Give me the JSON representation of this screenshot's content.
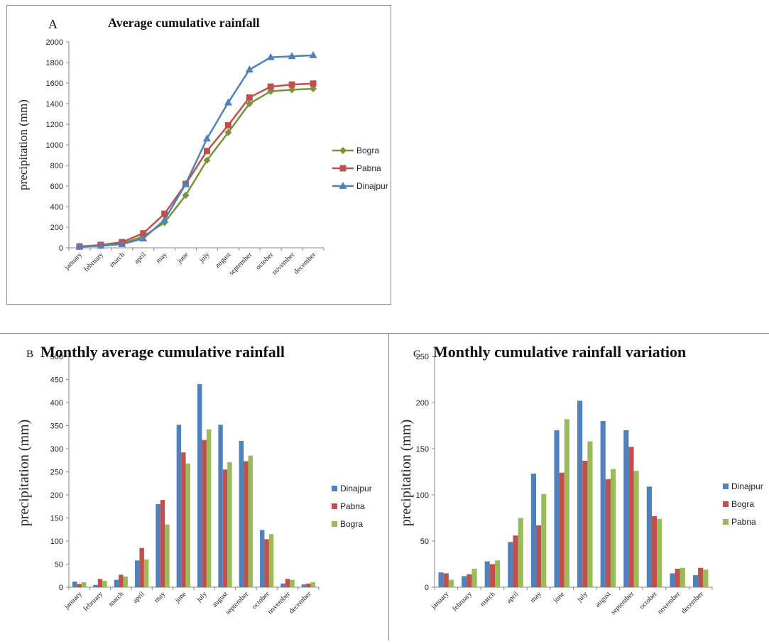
{
  "chart_data": [
    {
      "id": "A",
      "type": "line",
      "panel_letter": "A",
      "title": "Average cumulative rainfall",
      "ylabel": "precipitation (mm)",
      "xlabel": "",
      "ylim": [
        0,
        2000
      ],
      "yticks": [
        0,
        200,
        400,
        600,
        800,
        1000,
        1200,
        1400,
        1600,
        1800,
        2000
      ],
      "categories": [
        "january",
        "february",
        "march",
        "april",
        "may",
        "june",
        "july",
        "august",
        "september",
        "october",
        "november",
        "december"
      ],
      "grid": false,
      "legend_position": "right",
      "series": [
        {
          "name": "Bogra",
          "color": "#77933c",
          "marker": "diamond",
          "values": [
            10,
            20,
            40,
            110,
            245,
            510,
            850,
            1120,
            1400,
            1520,
            1535,
            1545
          ]
        },
        {
          "name": "Pabna",
          "color": "#c0504d",
          "marker": "square",
          "values": [
            12,
            28,
            55,
            140,
            330,
            620,
            940,
            1190,
            1460,
            1565,
            1585,
            1595
          ]
        },
        {
          "name": "Dinajpur",
          "color": "#4f81bd",
          "marker": "triangle",
          "values": [
            12,
            20,
            35,
            90,
            270,
            620,
            1060,
            1410,
            1730,
            1850,
            1860,
            1870
          ]
        }
      ]
    },
    {
      "id": "B",
      "type": "bar",
      "panel_letter": "B",
      "title": "Monthly average cumulative rainfall",
      "ylabel": "precipitation (mm)",
      "xlabel": "",
      "ylim": [
        0,
        500
      ],
      "yticks": [
        0,
        50,
        100,
        150,
        200,
        250,
        300,
        350,
        400,
        450,
        500
      ],
      "categories": [
        "january",
        "february",
        "march",
        "april",
        "may",
        "june",
        "july",
        "august",
        "september",
        "october",
        "november",
        "december"
      ],
      "grid": false,
      "legend_position": "right",
      "series": [
        {
          "name": "Dinajpur",
          "color": "#4f81bd",
          "values": [
            12,
            5,
            16,
            58,
            180,
            352,
            440,
            352,
            317,
            124,
            8,
            6
          ]
        },
        {
          "name": "Pabna",
          "color": "#c0504d",
          "values": [
            7,
            18,
            27,
            85,
            189,
            292,
            319,
            255,
            273,
            104,
            18,
            8
          ]
        },
        {
          "name": "Bogra",
          "color": "#9bbb59",
          "values": [
            11,
            14,
            23,
            60,
            136,
            268,
            342,
            271,
            285,
            115,
            16,
            11
          ]
        }
      ]
    },
    {
      "id": "C",
      "type": "bar",
      "panel_letter": "C",
      "title": "Monthly cumulative rainfall variation",
      "ylabel": "precipitation (mm)",
      "xlabel": "",
      "ylim": [
        0,
        250
      ],
      "yticks": [
        0,
        50,
        100,
        150,
        200,
        250
      ],
      "categories": [
        "january",
        "february",
        "march",
        "april",
        "may",
        "june",
        "july",
        "august",
        "september",
        "october",
        "november",
        "december"
      ],
      "grid": false,
      "legend_position": "right",
      "series": [
        {
          "name": "Dinajpur",
          "color": "#4f81bd",
          "values": [
            16,
            12,
            28,
            49,
            123,
            170,
            202,
            180,
            170,
            109,
            15,
            13
          ]
        },
        {
          "name": "Bogra",
          "color": "#c0504d",
          "values": [
            15,
            14,
            25,
            56,
            67,
            124,
            137,
            117,
            152,
            77,
            20,
            21
          ]
        },
        {
          "name": "Pabna",
          "color": "#9bbb59",
          "values": [
            8,
            20,
            29,
            75,
            101,
            182,
            158,
            128,
            126,
            74,
            21,
            19
          ]
        }
      ]
    }
  ]
}
